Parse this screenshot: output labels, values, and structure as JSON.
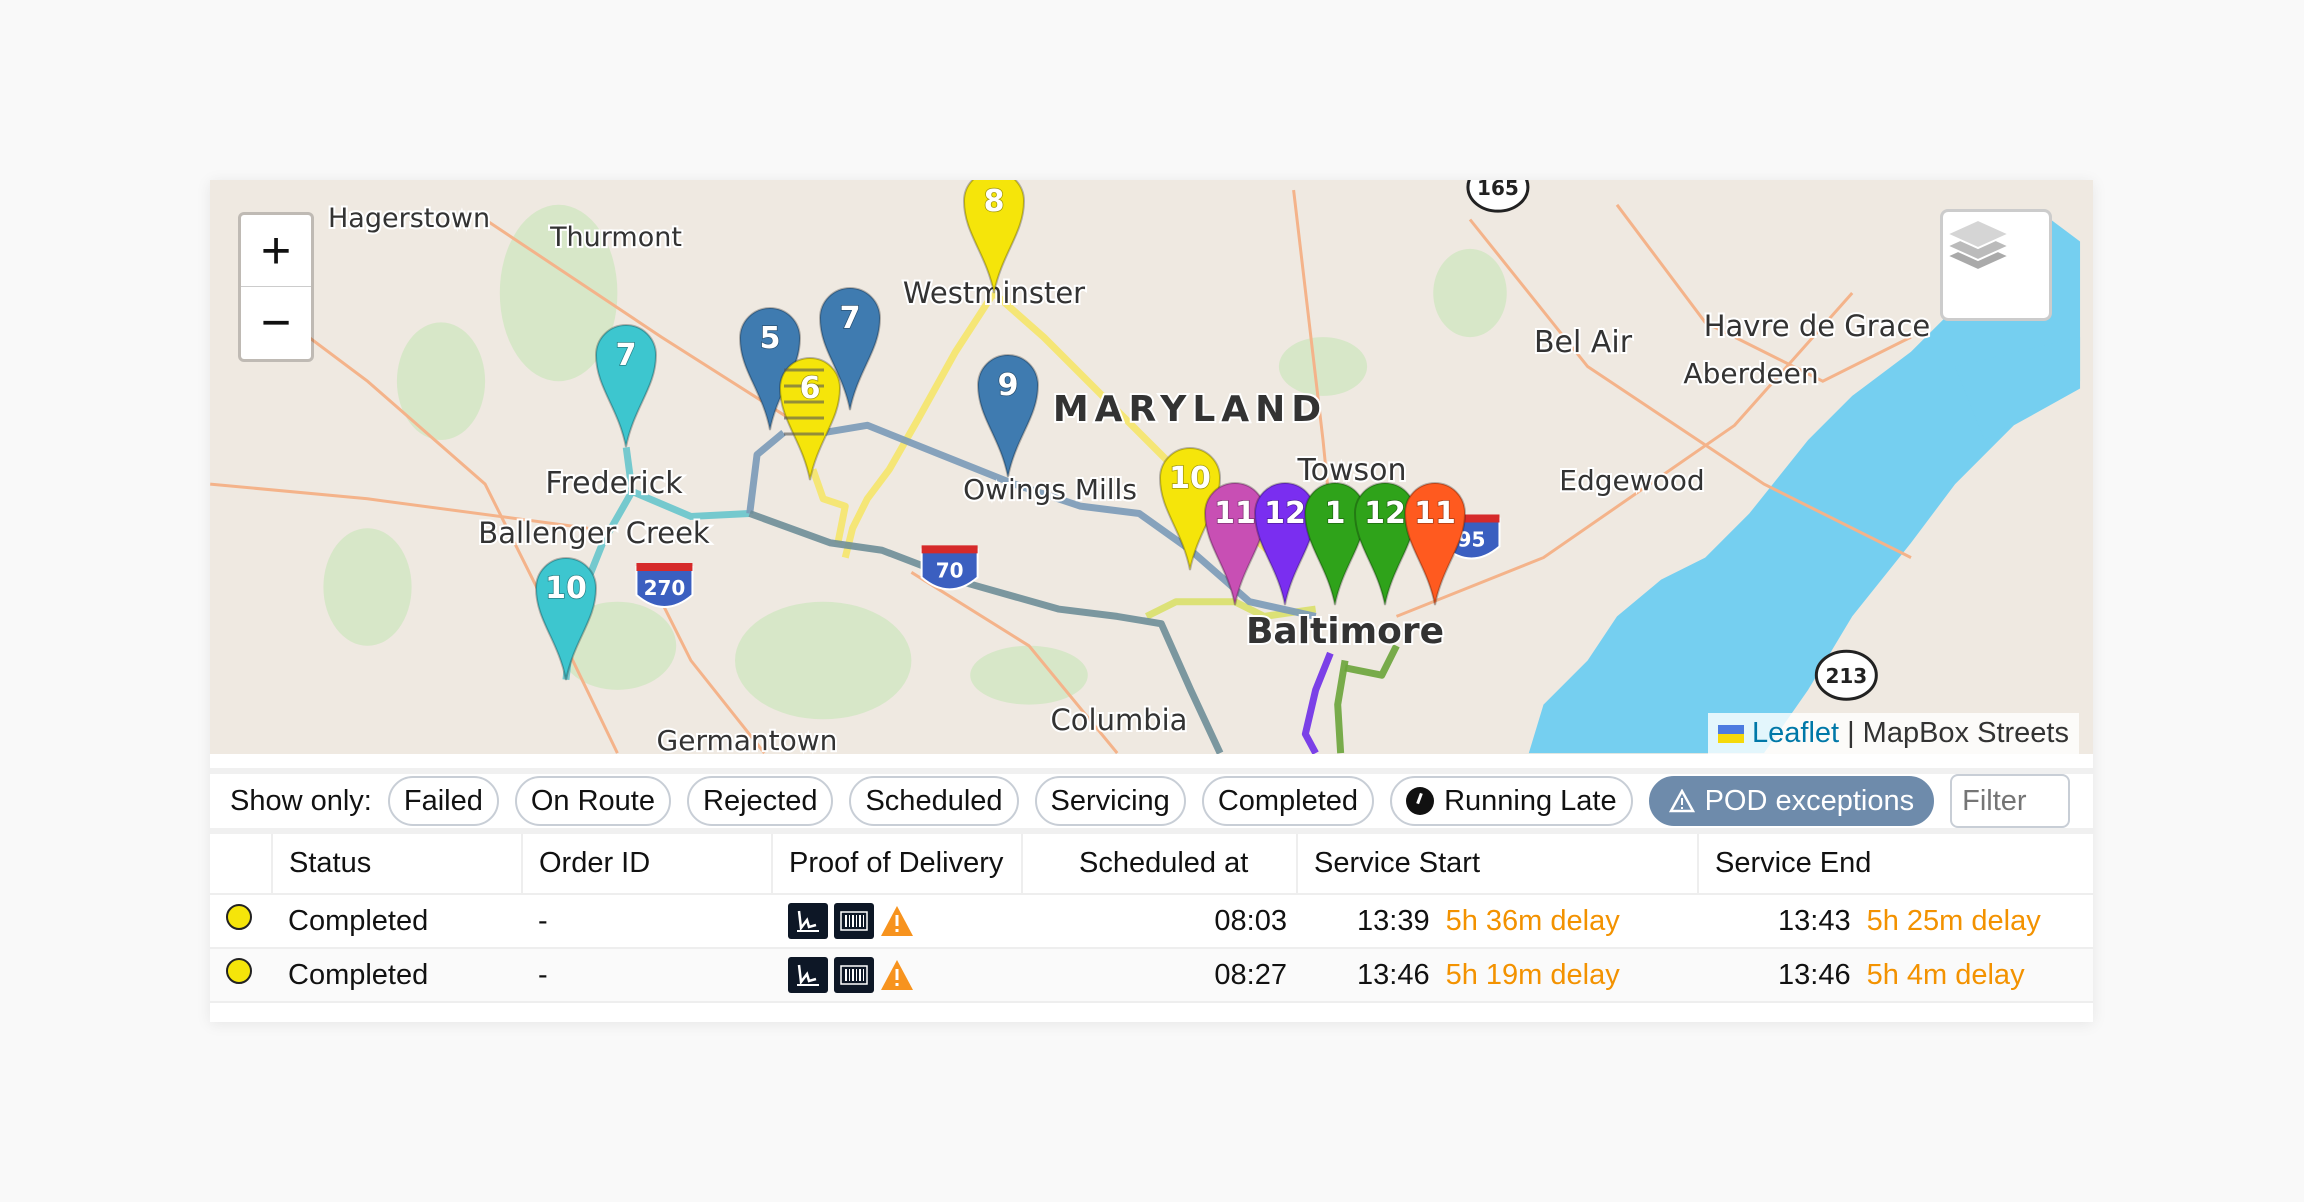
{
  "map": {
    "zoom_in": "+",
    "zoom_out": "−",
    "layers_icon": "layers-icon",
    "places": [
      "Hagerstown",
      "Thurmont",
      "Westminster",
      "MARYLAND",
      "Bel Air",
      "Havre de Grace",
      "Aberdeen",
      "Frederick",
      "Ballenger Creek",
      "Owings Mills",
      "Towson",
      "Edgewood",
      "Baltimore",
      "Columbia",
      "Germantown"
    ],
    "shields": [
      "165",
      "95",
      "270",
      "70",
      "213"
    ],
    "markers": [
      {
        "label": "8",
        "color": "#f5e50a"
      },
      {
        "label": "7",
        "color": "#3dc6cf"
      },
      {
        "label": "7",
        "color": "#3f7bb0"
      },
      {
        "label": "5",
        "color": "#3f7bb0"
      },
      {
        "label": "6",
        "color": "#f5e50a"
      },
      {
        "label": "9",
        "color": "#3f7bb0"
      },
      {
        "label": "10",
        "color": "#f5e50a"
      },
      {
        "label": "10",
        "color": "#3dc6cf"
      },
      {
        "label": "11",
        "color": "#c84fb4"
      },
      {
        "label": "12",
        "color": "#7a2ef0"
      },
      {
        "label": "1",
        "color": "#2fa31a"
      },
      {
        "label": "12",
        "color": "#2fa31a"
      },
      {
        "label": "11",
        "color": "#ff5a1f"
      }
    ],
    "attribution": {
      "leaflet": "Leaflet",
      "separator": "|",
      "tiles": "MapBox Streets"
    }
  },
  "filters": {
    "label": "Show only:",
    "options": [
      "Failed",
      "On Route",
      "Rejected",
      "Scheduled",
      "Servicing",
      "Completed",
      "Running Late",
      "POD exceptions"
    ],
    "active": "POD exceptions",
    "search_placeholder": "Filter"
  },
  "table": {
    "columns": [
      "",
      "Status",
      "Order ID",
      "Proof of Delivery",
      "Scheduled at",
      "Service Start",
      "Service End"
    ],
    "rows": [
      {
        "status": "Completed",
        "status_color": "#f5e50a",
        "order_id": "-",
        "scheduled_at": "08:03",
        "service_start": "13:39",
        "start_delay": "5h 36m delay",
        "service_end": "13:43",
        "end_delay": "5h 25m delay"
      },
      {
        "status": "Completed",
        "status_color": "#f5e50a",
        "order_id": "-",
        "scheduled_at": "08:27",
        "service_start": "13:46",
        "start_delay": "5h 19m delay",
        "service_end": "13:46",
        "end_delay": "5h 4m delay"
      }
    ],
    "delay_color": "#f39200"
  }
}
